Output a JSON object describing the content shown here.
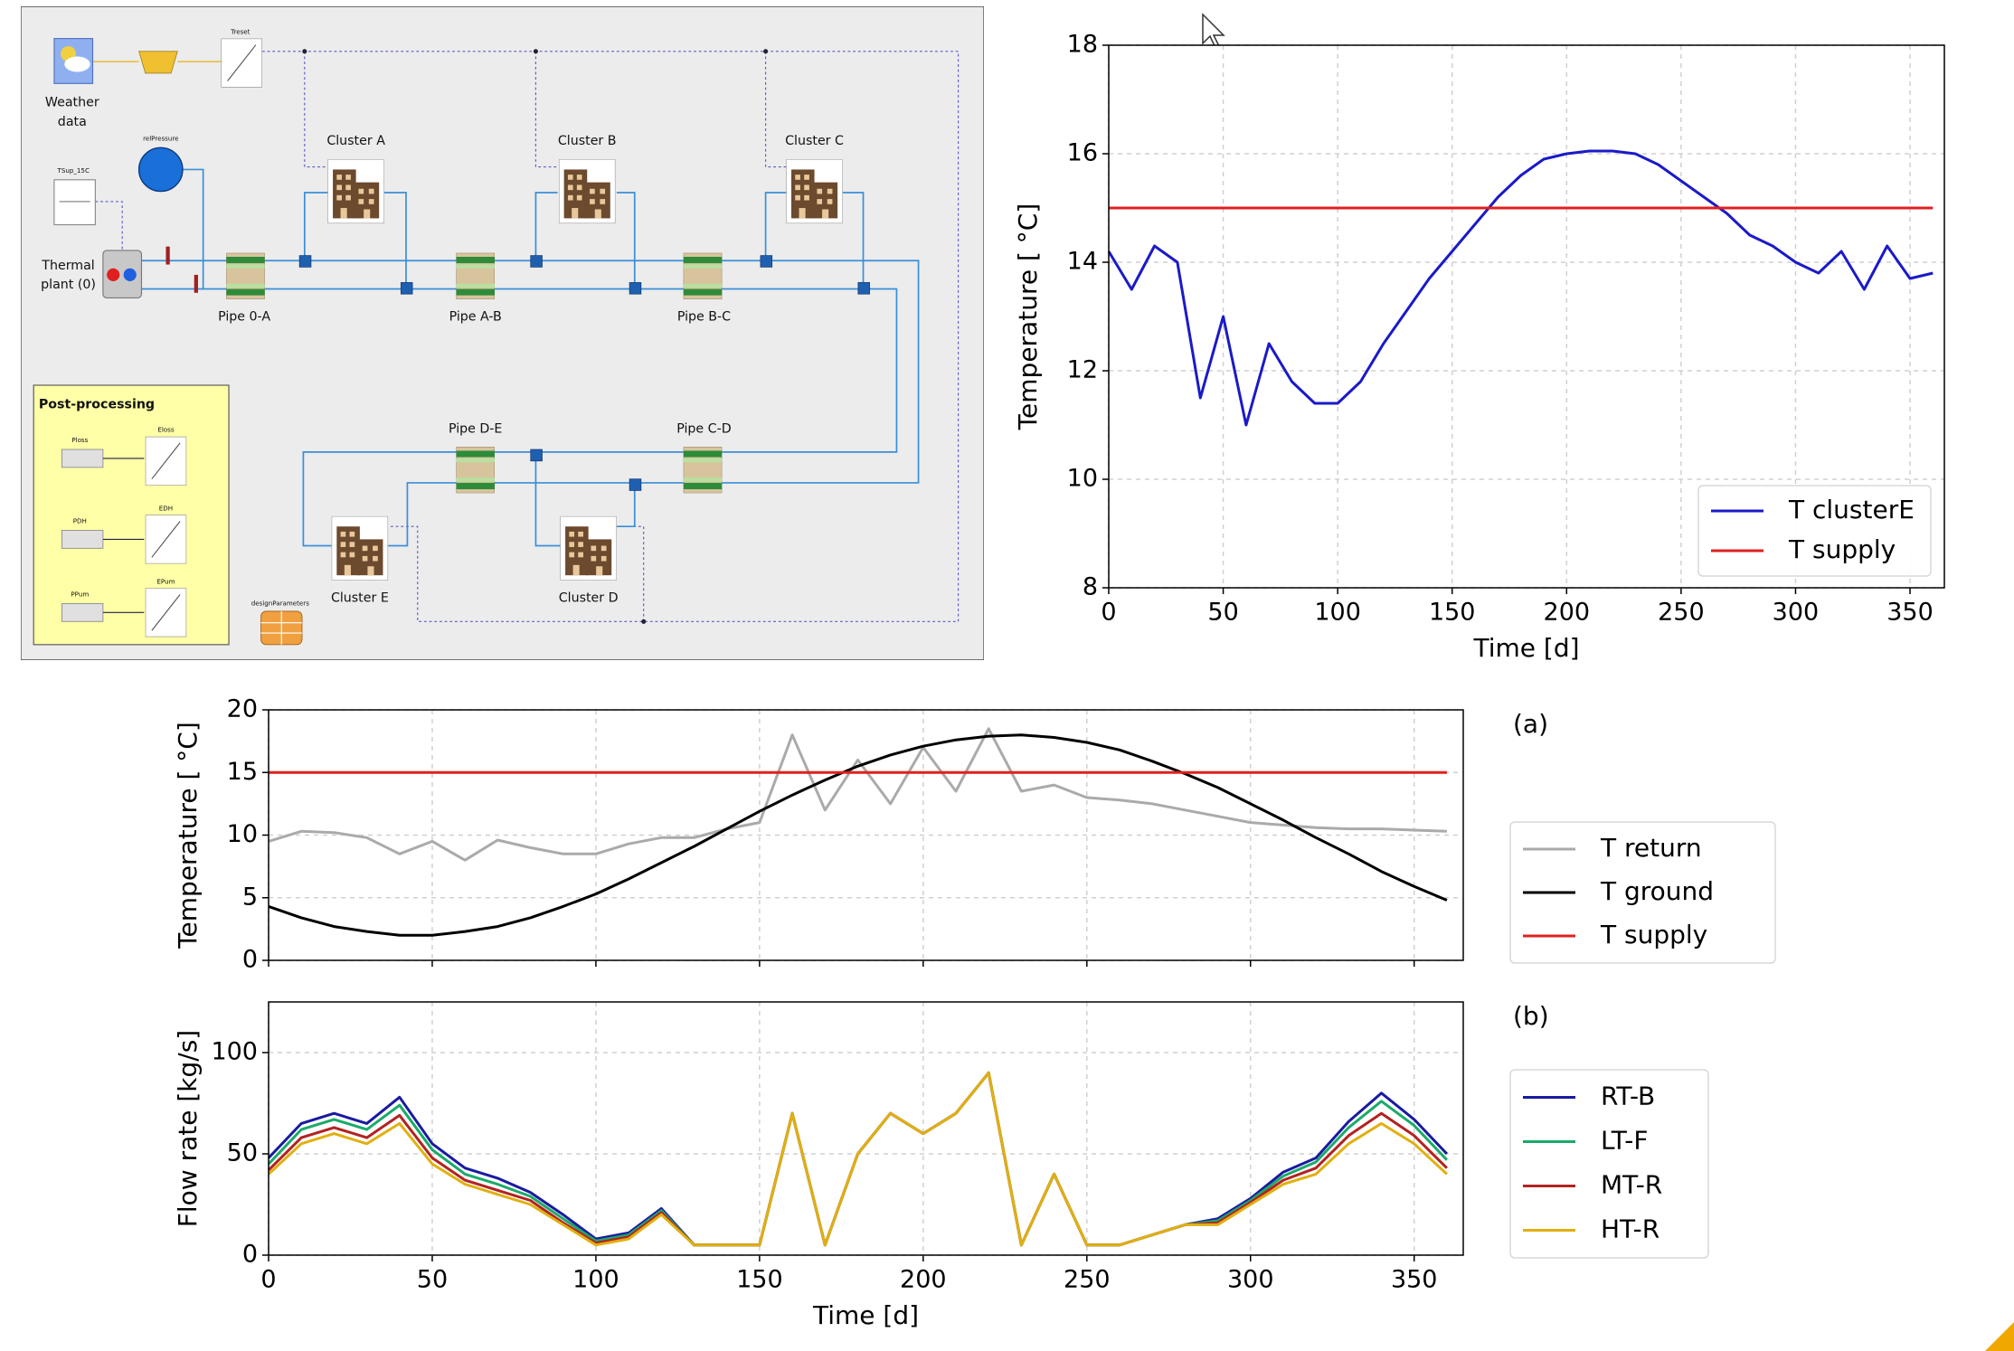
{
  "diagram": {
    "weather": [
      "Weather",
      "data"
    ],
    "treset": "Treset",
    "rel_pressure": "relPressure",
    "tsup": "TSup_15C",
    "thermal_plant": [
      "Thermal",
      "plant (0)"
    ],
    "clusters": [
      "Cluster A",
      "Cluster B",
      "Cluster C",
      "Cluster D",
      "Cluster E"
    ],
    "pipes": [
      "Pipe 0-A",
      "Pipe A-B",
      "Pipe B-C",
      "Pipe D-E",
      "Pipe C-D"
    ],
    "post_processing": {
      "title": "Post-processing",
      "inputs": [
        "Ploss",
        "PDH",
        "PPum"
      ],
      "outputs": [
        "Eloss",
        "EDH",
        "EPum"
      ]
    },
    "design_parameters": "designParameters"
  },
  "chart_data": [
    {
      "type": "line",
      "y_label": "Temperature [ °C]",
      "x_label": "Time [d]",
      "x": [
        0,
        10,
        20,
        30,
        40,
        50,
        60,
        70,
        80,
        90,
        100,
        110,
        120,
        130,
        140,
        150,
        160,
        170,
        180,
        190,
        200,
        210,
        220,
        230,
        240,
        250,
        260,
        270,
        280,
        290,
        300,
        310,
        320,
        330,
        340,
        350,
        360
      ],
      "series": [
        {
          "name": "T clusterE",
          "color": "#1a1ac8",
          "values": [
            14.2,
            13.5,
            14.3,
            14.0,
            11.5,
            13.0,
            11.0,
            12.5,
            11.8,
            11.4,
            11.4,
            11.8,
            12.5,
            13.1,
            13.7,
            14.2,
            14.7,
            15.2,
            15.6,
            15.9,
            16.0,
            16.05,
            16.05,
            16.0,
            15.8,
            15.5,
            15.2,
            14.9,
            14.5,
            14.3,
            14.0,
            13.8,
            14.2,
            13.5,
            14.3,
            13.7,
            13.8
          ]
        },
        {
          "name": "T supply",
          "color": "#e02020",
          "values": [
            15,
            15,
            15,
            15,
            15,
            15,
            15,
            15,
            15,
            15,
            15,
            15,
            15,
            15,
            15,
            15,
            15,
            15,
            15,
            15,
            15,
            15,
            15,
            15,
            15,
            15,
            15,
            15,
            15,
            15,
            15,
            15,
            15,
            15,
            15,
            15,
            15
          ]
        }
      ],
      "xlim": [
        0,
        365
      ],
      "xticks": [
        0,
        50,
        100,
        150,
        200,
        250,
        300,
        350
      ],
      "ylim": [
        8,
        18
      ],
      "yticks": [
        8,
        10,
        12,
        14,
        16,
        18
      ],
      "grid": true,
      "legend": "lower right",
      "stacked": false
    },
    {
      "type": "line",
      "y_label": "Temperature [ °C]",
      "panel_label": "(a)",
      "x": [
        0,
        10,
        20,
        30,
        40,
        50,
        60,
        70,
        80,
        90,
        100,
        110,
        120,
        130,
        140,
        150,
        160,
        170,
        180,
        190,
        200,
        210,
        220,
        230,
        240,
        250,
        260,
        270,
        280,
        290,
        300,
        310,
        320,
        330,
        340,
        350,
        360
      ],
      "series": [
        {
          "name": "T return",
          "color": "#aaaaaa",
          "values": [
            9.5,
            10.3,
            10.2,
            9.8,
            8.5,
            9.5,
            8.0,
            9.6,
            9.0,
            8.5,
            8.5,
            9.3,
            9.8,
            9.8,
            10.5,
            11.0,
            18.0,
            12.0,
            16.0,
            12.5,
            17.0,
            13.5,
            18.5,
            13.5,
            14.0,
            13.0,
            12.8,
            12.5,
            12.0,
            11.5,
            11.0,
            10.8,
            10.6,
            10.5,
            10.5,
            10.4,
            10.3
          ]
        },
        {
          "name": "T ground",
          "color": "#000000",
          "values": [
            4.3,
            3.4,
            2.7,
            2.3,
            2.0,
            2.0,
            2.3,
            2.7,
            3.4,
            4.3,
            5.3,
            6.5,
            7.8,
            9.1,
            10.5,
            11.9,
            13.2,
            14.4,
            15.5,
            16.4,
            17.1,
            17.6,
            17.9,
            18.0,
            17.8,
            17.4,
            16.8,
            15.9,
            14.9,
            13.8,
            12.5,
            11.2,
            9.8,
            8.5,
            7.1,
            5.9,
            4.8
          ]
        },
        {
          "name": "T supply",
          "color": "#e02020",
          "values": [
            15,
            15,
            15,
            15,
            15,
            15,
            15,
            15,
            15,
            15,
            15,
            15,
            15,
            15,
            15,
            15,
            15,
            15,
            15,
            15,
            15,
            15,
            15,
            15,
            15,
            15,
            15,
            15,
            15,
            15,
            15,
            15,
            15,
            15,
            15,
            15,
            15
          ]
        }
      ],
      "xlim": [
        0,
        365
      ],
      "xticks": [
        0,
        50,
        100,
        150,
        200,
        250,
        300,
        350
      ],
      "ylim": [
        0,
        20
      ],
      "yticks": [
        0,
        5,
        10,
        15,
        20
      ],
      "grid": true,
      "legend": "outside right",
      "stacked": false
    },
    {
      "type": "line",
      "y_label": "Flow rate [kg/s]",
      "x_label": "Time [d]",
      "panel_label": "(b)",
      "x": [
        0,
        10,
        20,
        30,
        40,
        50,
        60,
        70,
        80,
        90,
        100,
        110,
        120,
        130,
        140,
        150,
        160,
        170,
        180,
        190,
        200,
        210,
        220,
        230,
        240,
        250,
        260,
        270,
        280,
        290,
        300,
        310,
        320,
        330,
        340,
        350,
        360
      ],
      "series": [
        {
          "name": "RT-B",
          "color": "#1a1aa0",
          "values": [
            3,
            3,
            3,
            3,
            4,
            3,
            3,
            3,
            2,
            2,
            1,
            1,
            1,
            0,
            0,
            0,
            0,
            0,
            0,
            0,
            0,
            0,
            0,
            0,
            0,
            0,
            0,
            0,
            0,
            1,
            1,
            2,
            2,
            3,
            4,
            3,
            3
          ]
        },
        {
          "name": "LT-F",
          "color": "#1aaa6a",
          "values": [
            3,
            4,
            4,
            4,
            5,
            4,
            3,
            3,
            2,
            2,
            1,
            1,
            1,
            0,
            0,
            0,
            0,
            0,
            0,
            0,
            0,
            0,
            0,
            0,
            0,
            0,
            0,
            0,
            0,
            1,
            1,
            2,
            3,
            4,
            6,
            5,
            4
          ]
        },
        {
          "name": "MT-R",
          "color": "#b22222",
          "values": [
            2,
            3,
            3,
            3,
            4,
            3,
            2,
            2,
            2,
            1,
            1,
            1,
            1,
            0,
            0,
            0,
            0,
            0,
            0,
            0,
            0,
            0,
            0,
            0,
            0,
            0,
            0,
            0,
            0,
            1,
            1,
            2,
            3,
            4,
            5,
            4,
            3
          ]
        },
        {
          "name": "HT-R",
          "color": "#e0b010",
          "values": [
            40,
            55,
            60,
            55,
            65,
            45,
            35,
            30,
            25,
            15,
            5,
            8,
            20,
            5,
            5,
            5,
            70,
            5,
            50,
            70,
            60,
            70,
            90,
            5,
            40,
            5,
            5,
            10,
            15,
            15,
            25,
            35,
            40,
            55,
            65,
            55,
            40
          ]
        }
      ],
      "xlim": [
        0,
        365
      ],
      "xticks": [
        0,
        50,
        100,
        150,
        200,
        250,
        300,
        350
      ],
      "ylim": [
        0,
        125
      ],
      "yticks": [
        0,
        50,
        100
      ],
      "grid": true,
      "legend": "outside right",
      "stacked": true
    }
  ]
}
